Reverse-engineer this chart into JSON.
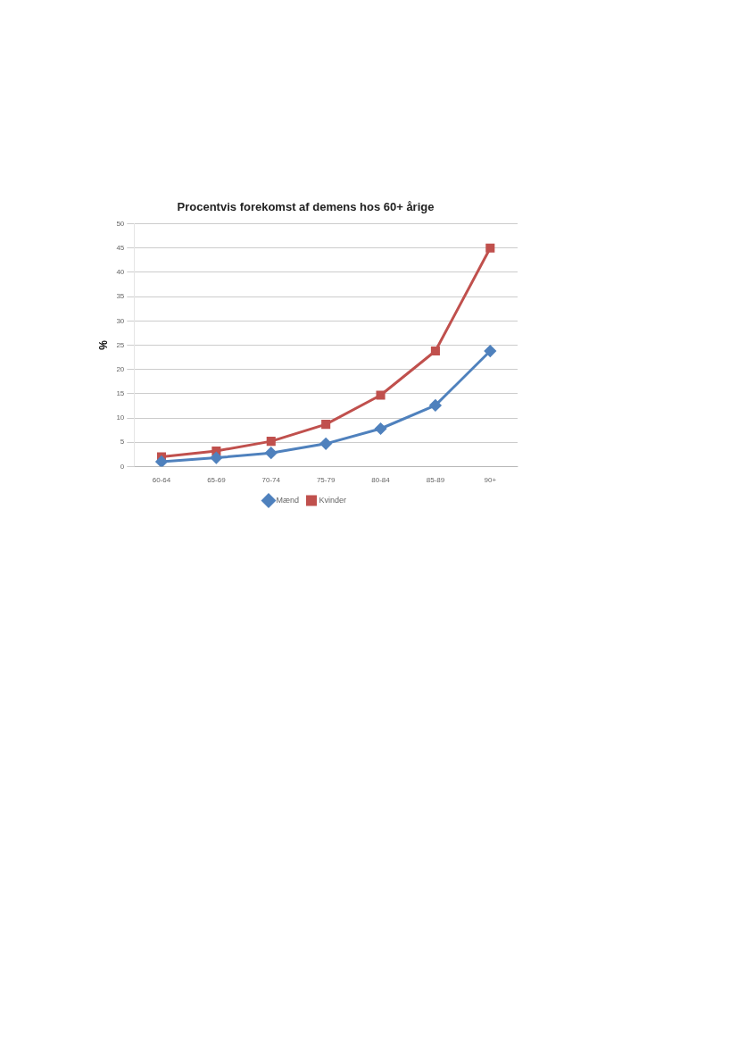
{
  "chart_data": {
    "type": "line",
    "title": "Procentvis forekomst af demens hos 60+ årige",
    "ylabel": "%",
    "categories": [
      "60-64",
      "65-69",
      "70-74",
      "75-79",
      "80-84",
      "85-89",
      "90+"
    ],
    "series": [
      {
        "name": "Mænd",
        "color": "#4f81bd",
        "marker": "diamond",
        "values": [
          1.0,
          1.8,
          2.8,
          4.7,
          7.8,
          12.6,
          23.8
        ]
      },
      {
        "name": "Kvinder",
        "color": "#c0504d",
        "marker": "square",
        "values": [
          2.0,
          3.2,
          5.2,
          8.7,
          14.7,
          23.8,
          45.0
        ]
      }
    ],
    "ylim": [
      0,
      50
    ],
    "yticks": [
      0,
      5,
      10,
      15,
      20,
      25,
      30,
      35,
      40,
      45,
      50
    ],
    "grid": "y",
    "legend": "bottom",
    "line_style": "solid"
  }
}
